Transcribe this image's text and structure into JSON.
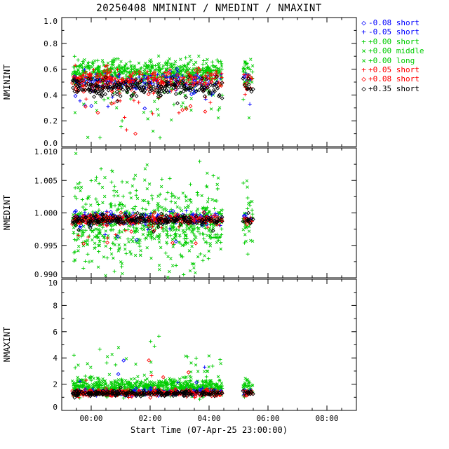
{
  "chart_data": {
    "type": "scatter",
    "title": "20250408 NMININT / NMEDINT / NMAXINT",
    "xlabel": "Start Time (07-Apr-25 23:00:00)",
    "xlim": [
      0,
      10
    ],
    "xticks": [
      {
        "v": 1,
        "label": "00:00"
      },
      {
        "v": 3,
        "label": "02:00"
      },
      {
        "v": 5,
        "label": "04:00"
      },
      {
        "v": 7,
        "label": "06:00"
      },
      {
        "v": 9,
        "label": "08:00"
      }
    ],
    "x_minor_step": 0.5,
    "x_main_range": [
      0.35,
      5.45
    ],
    "x_clump_range": [
      6.15,
      6.5
    ],
    "clump_frac": 0.05,
    "grid": false,
    "legend_position": "top-right",
    "panels": [
      {
        "ylabel": "NMININT",
        "ylim": [
          0,
          1
        ],
        "yticks": [
          {
            "v": 0.0,
            "label": "0.0"
          },
          {
            "v": 0.2,
            "label": "0.2"
          },
          {
            "v": 0.4,
            "label": "0.4"
          },
          {
            "v": 0.6,
            "label": "0.6"
          },
          {
            "v": 0.8,
            "label": "0.8"
          },
          {
            "v": 1.0,
            "label": "1.0"
          }
        ]
      },
      {
        "ylabel": "NMEDINT",
        "ylim": [
          0.99,
          1.01
        ],
        "yticks": [
          {
            "v": 0.99,
            "label": "0.990"
          },
          {
            "v": 0.995,
            "label": "0.995"
          },
          {
            "v": 1.0,
            "label": "1.000"
          },
          {
            "v": 1.005,
            "label": "1.005"
          },
          {
            "v": 1.01,
            "label": "1.010"
          }
        ]
      },
      {
        "ylabel": "NMAXINT",
        "ylim": [
          0,
          10
        ],
        "yticks": [
          {
            "v": 0,
            "label": "0"
          },
          {
            "v": 2,
            "label": "2"
          },
          {
            "v": 4,
            "label": "4"
          },
          {
            "v": 6,
            "label": "6"
          },
          {
            "v": 8,
            "label": "8"
          },
          {
            "v": 10,
            "label": "10"
          }
        ]
      }
    ],
    "draw_order": [
      2,
      3,
      4,
      1,
      0,
      5,
      6,
      7
    ],
    "series": [
      {
        "label": "-0.08 short",
        "color": "#0000ff",
        "symbol": "diamond",
        "n": 85,
        "dist": [
          {
            "mean": 0.5,
            "sd": 0.035,
            "tp": 0.05,
            "tmin": 0.05,
            "tmax": 0.25,
            "dir": -1
          },
          {
            "mean": 0.9991,
            "sd": 0.0005,
            "tp": 0.04,
            "tmin": 0.001,
            "tmax": 0.003,
            "dir": -1
          },
          {
            "mean": 1.35,
            "sd": 0.12,
            "tp": 0.02,
            "tmin": 0.5,
            "tmax": 2.2,
            "dir": 1
          }
        ]
      },
      {
        "label": "-0.05 short",
        "color": "#0000ff",
        "symbol": "plus",
        "n": 85,
        "dist": [
          {
            "mean": 0.51,
            "sd": 0.04,
            "tp": 0.05,
            "tmin": 0.05,
            "tmax": 0.2,
            "dir": -1
          },
          {
            "mean": 0.9991,
            "sd": 0.0005,
            "tp": 0.04,
            "tmin": 0.001,
            "tmax": 0.003,
            "dir": -1
          },
          {
            "mean": 1.4,
            "sd": 0.13,
            "tp": 0.02,
            "tmin": 0.5,
            "tmax": 2.0,
            "dir": 1
          }
        ]
      },
      {
        "label": "+0.00 short",
        "color": "#00cc00",
        "symbol": "plus",
        "n": 330,
        "dist": [
          {
            "mean": 0.57,
            "sd": 0.045,
            "tp": 0.07,
            "tmin": 0.05,
            "tmax": 0.4,
            "dir": -1
          },
          {
            "mean": 0.9985,
            "sd": 0.0015,
            "tp": 0.25,
            "tmin": 0.001,
            "tmax": 0.007,
            "dir": 0
          },
          {
            "mean": 1.75,
            "sd": 0.3,
            "tp": 0.05,
            "tmin": 0.5,
            "tmax": 3.3,
            "dir": 1
          }
        ]
      },
      {
        "label": "+0.00 middle",
        "color": "#00cc00",
        "symbol": "cross",
        "n": 300,
        "dist": [
          {
            "mean": 0.58,
            "sd": 0.05,
            "tp": 0.06,
            "tmin": 0.05,
            "tmax": 0.35,
            "dir": -1
          },
          {
            "mean": 0.9983,
            "sd": 0.002,
            "tp": 0.3,
            "tmin": 0.001,
            "tmax": 0.007,
            "dir": 0
          },
          {
            "mean": 1.85,
            "sd": 0.3,
            "tp": 0.05,
            "tmin": 0.4,
            "tmax": 2.5,
            "dir": 1
          }
        ]
      },
      {
        "label": "+0.00 long",
        "color": "#00cc00",
        "symbol": "cross",
        "n": 55,
        "dist": [
          {
            "mean": 0.52,
            "sd": 0.08,
            "tp": 0.25,
            "tmin": 0.05,
            "tmax": 0.35,
            "dir": -1
          },
          {
            "mean": 0.998,
            "sd": 0.0025,
            "tp": 0.3,
            "tmin": 0.001,
            "tmax": 0.006,
            "dir": 0
          },
          {
            "mean": 1.9,
            "sd": 0.4,
            "tp": 0.08,
            "tmin": 0.4,
            "tmax": 2.2,
            "dir": 1
          }
        ]
      },
      {
        "label": "+0.05 short",
        "color": "#ff0000",
        "symbol": "plus",
        "n": 160,
        "dist": [
          {
            "mean": 0.52,
            "sd": 0.045,
            "tp": 0.05,
            "tmin": 0.05,
            "tmax": 0.3,
            "dir": -1
          },
          {
            "mean": 0.999,
            "sd": 0.0004,
            "tp": 0.05,
            "tmin": 0.001,
            "tmax": 0.003,
            "dir": -1
          },
          {
            "mean": 1.3,
            "sd": 0.12,
            "tp": 0.02,
            "tmin": 0.3,
            "tmax": 1.5,
            "dir": 1
          }
        ]
      },
      {
        "label": "+0.08 short",
        "color": "#ff0000",
        "symbol": "diamond",
        "n": 120,
        "dist": [
          {
            "mean": 0.5,
            "sd": 0.045,
            "tp": 0.06,
            "tmin": 0.05,
            "tmax": 0.3,
            "dir": -1
          },
          {
            "mean": 0.999,
            "sd": 0.0004,
            "tp": 0.05,
            "tmin": 0.001,
            "tmax": 0.003,
            "dir": -1
          },
          {
            "mean": 1.35,
            "sd": 0.13,
            "tp": 0.03,
            "tmin": 0.3,
            "tmax": 2.6,
            "dir": 1
          }
        ]
      },
      {
        "label": "+0.35 short",
        "color": "#000000",
        "symbol": "diamond",
        "n": 210,
        "dist": [
          {
            "mean": 0.46,
            "sd": 0.035,
            "tp": 0.03,
            "tmin": 0.03,
            "tmax": 0.15,
            "dir": -1
          },
          {
            "mean": 0.9989,
            "sd": 0.0004,
            "tp": 0.04,
            "tmin": 0.001,
            "tmax": 0.002,
            "dir": -1
          },
          {
            "mean": 1.3,
            "sd": 0.1,
            "tp": 0.01,
            "tmin": 0.2,
            "tmax": 0.8,
            "dir": 1
          }
        ]
      }
    ],
    "extra_points": [
      {
        "panel": 0,
        "series": 2,
        "x": 1.3,
        "y": 0.07
      },
      {
        "panel": 0,
        "series": 5,
        "x": 2.2,
        "y": 0.13
      },
      {
        "panel": 0,
        "series": 6,
        "x": 2.5,
        "y": 0.1
      },
      {
        "panel": 0,
        "series": 4,
        "x": 3.1,
        "y": 0.12
      },
      {
        "panel": 1,
        "series": 2,
        "x": 1.7,
        "y": 1.0065
      },
      {
        "panel": 1,
        "series": 3,
        "x": 2.5,
        "y": 1.0058
      },
      {
        "panel": 1,
        "series": 2,
        "x": 3.4,
        "y": 1.0052
      },
      {
        "panel": 2,
        "series": 3,
        "x": 1.55,
        "y": 4.1
      },
      {
        "panel": 2,
        "series": 2,
        "x": 3.3,
        "y": 5.65
      },
      {
        "panel": 2,
        "series": 2,
        "x": 3.15,
        "y": 4.9
      },
      {
        "panel": 2,
        "series": 0,
        "x": 2.1,
        "y": 3.8
      },
      {
        "panel": 2,
        "series": 1,
        "x": 4.85,
        "y": 3.3
      },
      {
        "panel": 2,
        "series": 6,
        "x": 4.3,
        "y": 2.9
      }
    ]
  }
}
